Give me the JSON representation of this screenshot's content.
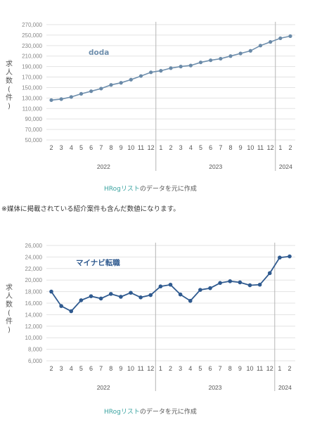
{
  "source": {
    "name": "HRogリスト",
    "suffix": "のデータを元に作成"
  },
  "note": "※媒体に掲載されている紹介案件も含んだ数値になります。",
  "colors": {
    "line": "#6f8fad",
    "point": "#6a8aa8",
    "line2": "#2f5a8f",
    "grid": "#e3e3e3",
    "separator": "#b5b5b5"
  },
  "chart_data": [
    {
      "type": "line",
      "title": "doda",
      "ylabel": "求人数(件)",
      "ylim": [
        50000,
        270000
      ],
      "yticks": [
        50000,
        70000,
        90000,
        110000,
        130000,
        150000,
        170000,
        190000,
        210000,
        230000,
        250000,
        270000
      ],
      "ytick_labels": [
        "50,000",
        "70,000",
        "90,000",
        "110,000",
        "130,000",
        "150,000",
        "170,000",
        "190,000",
        "210,000",
        "230,000",
        "250,000",
        "270,000"
      ],
      "x_month_labels": [
        "2",
        "3",
        "4",
        "5",
        "6",
        "7",
        "8",
        "9",
        "10",
        "11",
        "12",
        "1",
        "2",
        "3",
        "4",
        "5",
        "6",
        "7",
        "8",
        "9",
        "10",
        "11",
        "12",
        "1",
        "2"
      ],
      "year_labels": [
        "2022",
        "2023",
        "2024"
      ],
      "values": [
        126000,
        128000,
        132000,
        138000,
        143000,
        148000,
        155000,
        159000,
        165000,
        172000,
        179000,
        182000,
        187000,
        190000,
        192000,
        198000,
        202000,
        205000,
        210000,
        215000,
        220000,
        230000,
        237000,
        244000,
        248000
      ]
    },
    {
      "type": "line",
      "title": "マイナビ転職",
      "ylabel": "求人数(件)",
      "ylim": [
        6000,
        26000
      ],
      "yticks": [
        6000,
        8000,
        10000,
        12000,
        14000,
        16000,
        18000,
        20000,
        22000,
        24000,
        26000
      ],
      "ytick_labels": [
        "6,000",
        "8,000",
        "10,000",
        "12,000",
        "14,000",
        "16,000",
        "18,000",
        "20,000",
        "22,000",
        "24,000",
        "26,000"
      ],
      "x_month_labels": [
        "2",
        "3",
        "4",
        "5",
        "6",
        "7",
        "8",
        "9",
        "10",
        "11",
        "12",
        "1",
        "2",
        "3",
        "4",
        "5",
        "6",
        "7",
        "8",
        "9",
        "10",
        "11",
        "12",
        "1",
        "2"
      ],
      "year_labels": [
        "2022",
        "2023",
        "2024"
      ],
      "values": [
        18000,
        15500,
        14600,
        16500,
        17200,
        16800,
        17600,
        17100,
        17800,
        17000,
        17400,
        18900,
        19200,
        17500,
        16400,
        18300,
        18600,
        19500,
        19800,
        19600,
        19100,
        19200,
        21200,
        23900,
        24100
      ]
    }
  ]
}
